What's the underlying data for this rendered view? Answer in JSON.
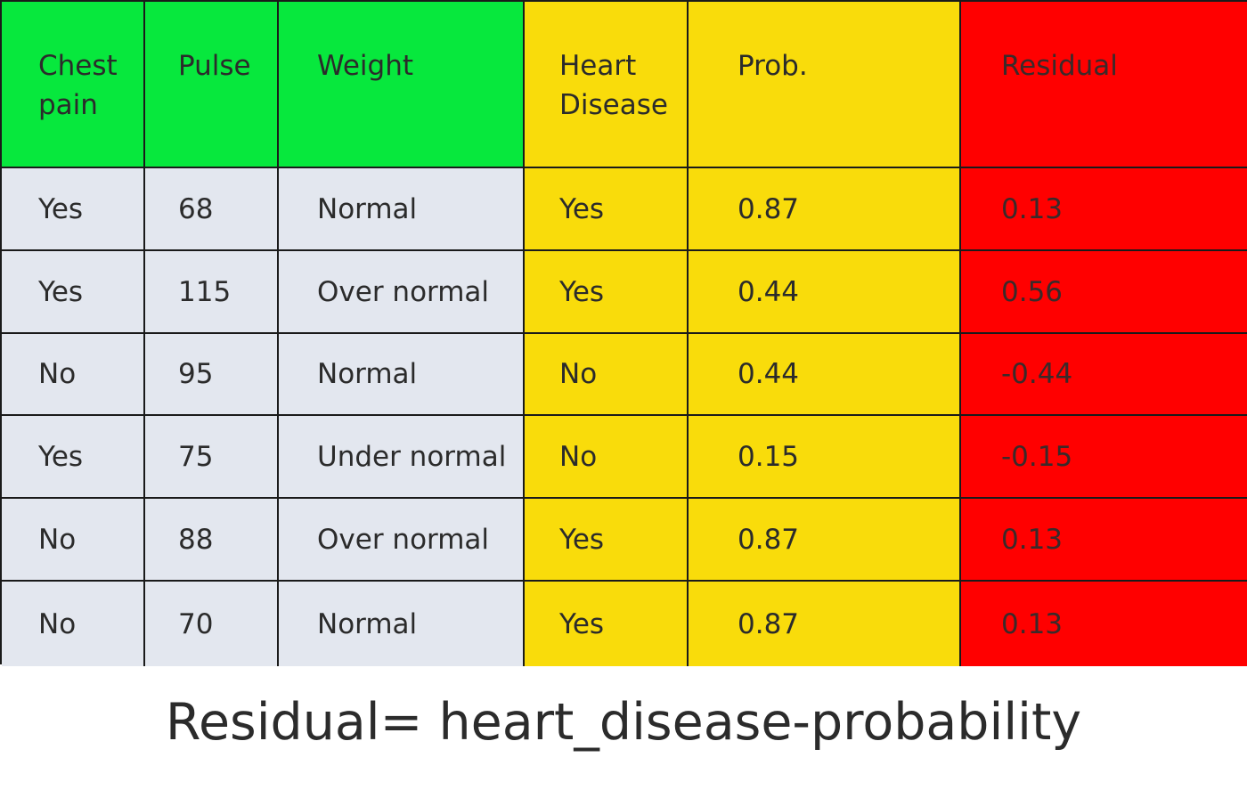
{
  "table": {
    "headers": [
      [
        "Chest",
        "pain"
      ],
      [
        "Pulse"
      ],
      [
        "Weight"
      ],
      [
        "Heart",
        "Disease"
      ],
      [
        "Prob."
      ],
      [
        "Residual"
      ]
    ],
    "rows": [
      [
        "Yes",
        "68",
        "Normal",
        "Yes",
        "0.87",
        "0.13"
      ],
      [
        "Yes",
        "115",
        "Over normal",
        "Yes",
        "0.44",
        "0.56"
      ],
      [
        "No",
        "95",
        "Normal",
        "No",
        "0.44",
        "-0.44"
      ],
      [
        "Yes",
        "75",
        "Under normal",
        "No",
        "0.15",
        "-0.15"
      ],
      [
        "No",
        "88",
        "Over normal",
        "Yes",
        "0.87",
        "0.13"
      ],
      [
        "No",
        "70",
        "Normal",
        "Yes",
        "0.87",
        "0.13"
      ]
    ]
  },
  "formula": "Residual= heart_disease-probability",
  "colors": {
    "feature_header": "#07e83d",
    "feature_cells": "#e3e7ef",
    "target_and_prob": "#f9dc0b",
    "residual": "#ff0000"
  }
}
